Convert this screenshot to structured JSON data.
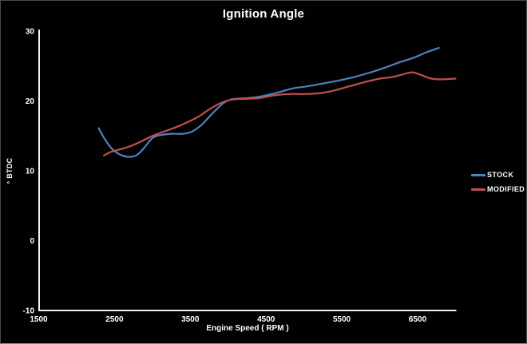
{
  "window": {
    "background": "#010101",
    "border_color": "#4a4a4a"
  },
  "chart_data": {
    "type": "line",
    "title": "Ignition Angle",
    "xlabel": "Engine Speed ( RPM )",
    "ylabel": "° BTDC",
    "xlim": [
      1500,
      7000
    ],
    "ylim": [
      -10,
      30
    ],
    "x_ticks": [
      1500,
      2500,
      3500,
      4500,
      5500,
      6500
    ],
    "y_ticks": [
      30,
      20,
      10,
      0,
      -10
    ],
    "grid": false,
    "legend_position": "right",
    "axis_color": "#f2f2f2",
    "text_color": "#ffffff",
    "series": [
      {
        "name": "STOCK",
        "color": "#4f81bd",
        "points": [
          [
            2290,
            16.1
          ],
          [
            2380,
            14.4
          ],
          [
            2480,
            13.0
          ],
          [
            2600,
            12.2
          ],
          [
            2700,
            12.0
          ],
          [
            2800,
            12.3
          ],
          [
            2900,
            13.4
          ],
          [
            3000,
            14.7
          ],
          [
            3100,
            15.1
          ],
          [
            3250,
            15.3
          ],
          [
            3400,
            15.3
          ],
          [
            3520,
            15.6
          ],
          [
            3650,
            16.6
          ],
          [
            3800,
            18.3
          ],
          [
            3950,
            19.8
          ],
          [
            4080,
            20.3
          ],
          [
            4250,
            20.4
          ],
          [
            4450,
            20.7
          ],
          [
            4650,
            21.2
          ],
          [
            4850,
            21.8
          ],
          [
            5050,
            22.1
          ],
          [
            5250,
            22.5
          ],
          [
            5450,
            22.9
          ],
          [
            5650,
            23.4
          ],
          [
            5850,
            24.0
          ],
          [
            6050,
            24.7
          ],
          [
            6250,
            25.5
          ],
          [
            6450,
            26.2
          ],
          [
            6600,
            26.9
          ],
          [
            6780,
            27.6
          ]
        ]
      },
      {
        "name": "MODIFIED",
        "color": "#c0504d",
        "points": [
          [
            2360,
            12.2
          ],
          [
            2450,
            12.7
          ],
          [
            2550,
            13.0
          ],
          [
            2650,
            13.3
          ],
          [
            2750,
            13.7
          ],
          [
            2850,
            14.2
          ],
          [
            3000,
            15.0
          ],
          [
            3150,
            15.6
          ],
          [
            3300,
            16.2
          ],
          [
            3450,
            16.9
          ],
          [
            3600,
            17.7
          ],
          [
            3750,
            18.8
          ],
          [
            3900,
            19.7
          ],
          [
            4050,
            20.2
          ],
          [
            4200,
            20.3
          ],
          [
            4400,
            20.4
          ],
          [
            4600,
            20.8
          ],
          [
            4800,
            21.0
          ],
          [
            5000,
            21.0
          ],
          [
            5200,
            21.1
          ],
          [
            5400,
            21.5
          ],
          [
            5600,
            22.1
          ],
          [
            5800,
            22.7
          ],
          [
            6000,
            23.2
          ],
          [
            6150,
            23.4
          ],
          [
            6300,
            23.8
          ],
          [
            6430,
            24.1
          ],
          [
            6550,
            23.7
          ],
          [
            6680,
            23.2
          ],
          [
            6820,
            23.1
          ],
          [
            7000,
            23.2
          ]
        ]
      }
    ]
  }
}
